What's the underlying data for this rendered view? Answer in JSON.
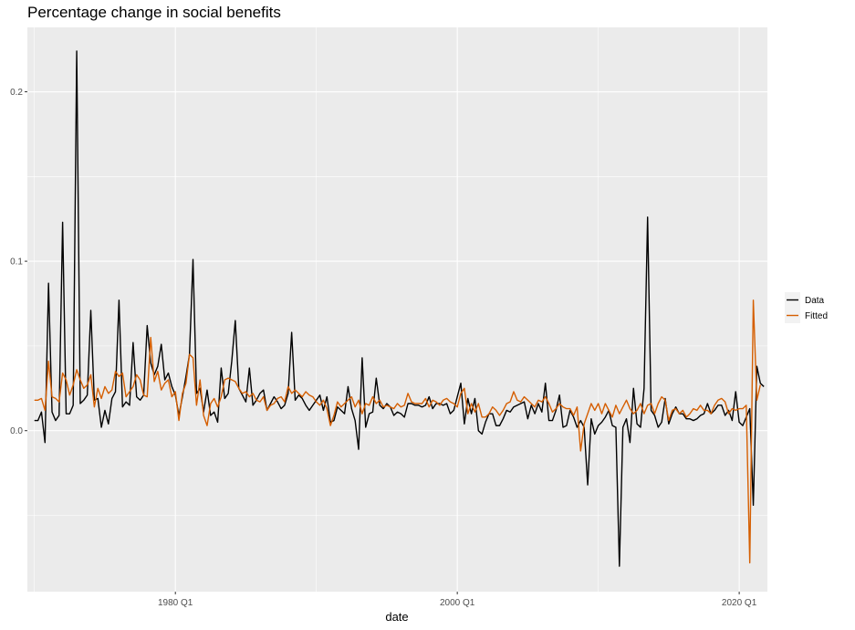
{
  "chart_data": {
    "type": "line",
    "title": "Percentage change in social benefits",
    "xlabel": "date",
    "ylabel": "",
    "x_start": "1970 Q1",
    "x_end": "2021 Q1",
    "xlim": [
      "1969 Q3",
      "2022 Q1"
    ],
    "ylim": [
      -0.095,
      0.238
    ],
    "xticks": [
      {
        "value": "1980 Q1",
        "label": "1980 Q1"
      },
      {
        "value": "2000 Q1",
        "label": "2000 Q1"
      },
      {
        "value": "2020 Q1",
        "label": "2020 Q1"
      }
    ],
    "yticks": [
      {
        "value": 0.0,
        "label": "0.0"
      },
      {
        "value": 0.1,
        "label": "0.1"
      },
      {
        "value": 0.2,
        "label": "0.2"
      }
    ],
    "grid": true,
    "legend_position": "right",
    "series": [
      {
        "name": "Data",
        "color": "#000000",
        "values": [
          0.006,
          0.006,
          0.011,
          -0.007,
          0.087,
          0.011,
          0.006,
          0.009,
          0.123,
          0.01,
          0.01,
          0.015,
          0.224,
          0.016,
          0.018,
          0.021,
          0.071,
          0.018,
          0.019,
          0.002,
          0.012,
          0.004,
          0.019,
          0.023,
          0.077,
          0.014,
          0.017,
          0.015,
          0.052,
          0.02,
          0.018,
          0.021,
          0.062,
          0.04,
          0.033,
          0.038,
          0.051,
          0.03,
          0.034,
          0.026,
          0.021,
          0.009,
          0.02,
          0.032,
          0.045,
          0.101,
          0.022,
          0.025,
          0.011,
          0.024,
          0.009,
          0.011,
          0.005,
          0.037,
          0.019,
          0.022,
          0.041,
          0.065,
          0.025,
          0.021,
          0.017,
          0.037,
          0.015,
          0.018,
          0.022,
          0.024,
          0.012,
          0.016,
          0.02,
          0.017,
          0.013,
          0.015,
          0.022,
          0.058,
          0.018,
          0.021,
          0.019,
          0.015,
          0.012,
          0.015,
          0.018,
          0.021,
          0.012,
          0.02,
          0.005,
          0.006,
          0.014,
          0.012,
          0.01,
          0.026,
          0.013,
          0.006,
          -0.011,
          0.043,
          0.002,
          0.01,
          0.011,
          0.031,
          0.015,
          0.013,
          0.016,
          0.014,
          0.009,
          0.011,
          0.01,
          0.008,
          0.016,
          0.016,
          0.015,
          0.015,
          0.014,
          0.015,
          0.02,
          0.013,
          0.016,
          0.016,
          0.015,
          0.016,
          0.01,
          0.012,
          0.02,
          0.028,
          0.004,
          0.019,
          0.01,
          0.019,
          0.0,
          -0.002,
          0.005,
          0.01,
          0.01,
          0.003,
          0.003,
          0.007,
          0.012,
          0.011,
          0.014,
          0.015,
          0.016,
          0.017,
          0.007,
          0.015,
          0.01,
          0.016,
          0.011,
          0.028,
          0.006,
          0.006,
          0.012,
          0.021,
          0.002,
          0.003,
          0.012,
          0.008,
          0.002,
          0.006,
          0.002,
          -0.032,
          0.007,
          -0.002,
          0.003,
          0.005,
          0.008,
          0.012,
          0.003,
          0.002,
          -0.08,
          0.002,
          0.007,
          -0.007,
          0.025,
          0.004,
          0.002,
          0.025,
          0.126,
          0.012,
          0.009,
          0.002,
          0.005,
          0.019,
          0.004,
          0.01,
          0.014,
          0.01,
          0.01,
          0.007,
          0.007,
          0.006,
          0.007,
          0.009,
          0.01,
          0.016,
          0.01,
          0.012,
          0.015,
          0.015,
          0.009,
          0.012,
          0.006,
          0.023,
          0.005,
          0.003,
          0.008,
          0.013,
          -0.044,
          0.038,
          0.028,
          0.026
        ]
      },
      {
        "name": "Fitted",
        "color": "#d55e00",
        "values": [
          0.018,
          0.018,
          0.019,
          0.012,
          0.041,
          0.02,
          0.019,
          0.017,
          0.034,
          0.03,
          0.021,
          0.027,
          0.036,
          0.03,
          0.025,
          0.027,
          0.033,
          0.014,
          0.025,
          0.019,
          0.026,
          0.022,
          0.024,
          0.035,
          0.032,
          0.034,
          0.02,
          0.023,
          0.026,
          0.033,
          0.03,
          0.021,
          0.02,
          0.055,
          0.029,
          0.035,
          0.024,
          0.028,
          0.03,
          0.02,
          0.023,
          0.006,
          0.022,
          0.028,
          0.045,
          0.043,
          0.015,
          0.03,
          0.009,
          0.003,
          0.016,
          0.019,
          0.014,
          0.02,
          0.03,
          0.031,
          0.03,
          0.029,
          0.025,
          0.022,
          0.023,
          0.02,
          0.022,
          0.018,
          0.017,
          0.02,
          0.012,
          0.015,
          0.016,
          0.019,
          0.02,
          0.017,
          0.026,
          0.022,
          0.024,
          0.022,
          0.02,
          0.023,
          0.021,
          0.02,
          0.017,
          0.015,
          0.018,
          0.013,
          0.003,
          0.009,
          0.017,
          0.014,
          0.016,
          0.018,
          0.02,
          0.014,
          0.018,
          0.01,
          0.016,
          0.015,
          0.02,
          0.016,
          0.018,
          0.014,
          0.015,
          0.014,
          0.013,
          0.016,
          0.014,
          0.015,
          0.022,
          0.017,
          0.016,
          0.016,
          0.016,
          0.019,
          0.014,
          0.018,
          0.017,
          0.015,
          0.018,
          0.019,
          0.017,
          0.016,
          0.014,
          0.022,
          0.025,
          0.01,
          0.016,
          0.011,
          0.016,
          0.008,
          0.008,
          0.01,
          0.014,
          0.012,
          0.009,
          0.012,
          0.016,
          0.017,
          0.023,
          0.018,
          0.017,
          0.02,
          0.018,
          0.016,
          0.014,
          0.018,
          0.017,
          0.02,
          0.016,
          0.011,
          0.013,
          0.016,
          0.014,
          0.013,
          0.013,
          0.009,
          0.014,
          -0.012,
          0.004,
          0.01,
          0.016,
          0.012,
          0.016,
          0.01,
          0.016,
          0.012,
          0.008,
          0.015,
          0.01,
          0.014,
          0.018,
          0.013,
          0.01,
          0.012,
          0.016,
          0.01,
          0.015,
          0.016,
          0.01,
          0.016,
          0.02,
          0.018,
          0.006,
          0.012,
          0.013,
          0.01,
          0.012,
          0.008,
          0.01,
          0.013,
          0.012,
          0.015,
          0.012,
          0.012,
          0.01,
          0.015,
          0.018,
          0.019,
          0.017,
          0.01,
          0.013,
          0.012,
          0.013,
          0.013,
          0.015,
          -0.078,
          0.077,
          0.018,
          0.027
        ]
      }
    ]
  }
}
